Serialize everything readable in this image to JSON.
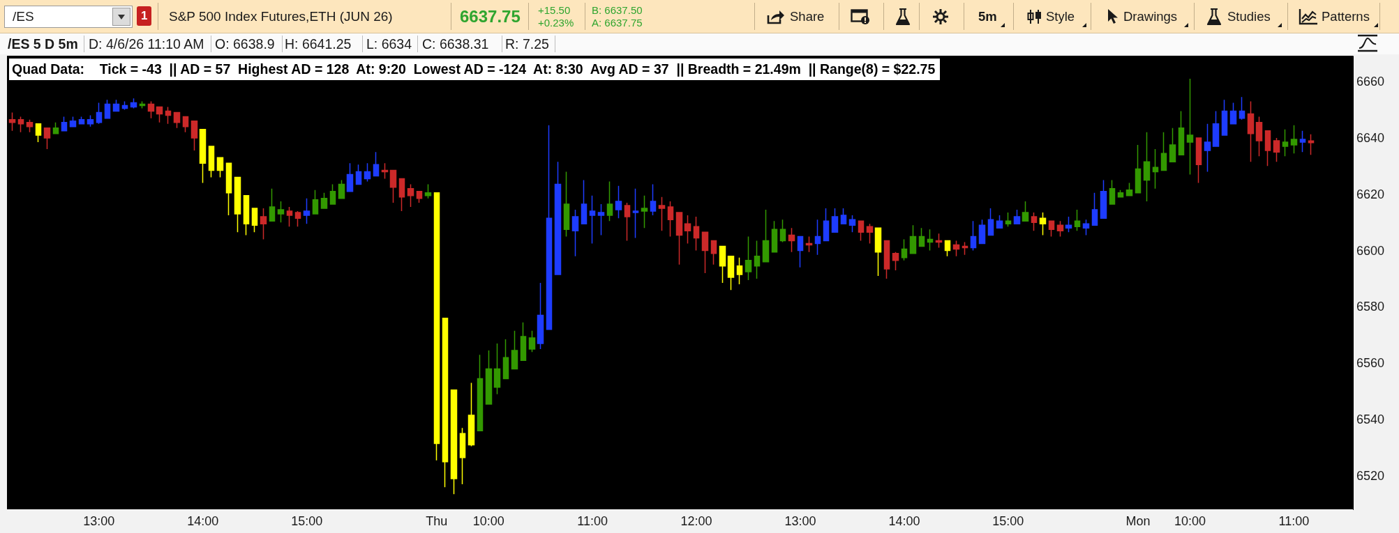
{
  "chart_data": {
    "type": "candlestick",
    "title": "S&P 500 Index Futures,ETH (JUN 26)",
    "annotations": [
      "/ES",
      "1",
      "6637.75",
      "+15.50",
      "+0.23%",
      "B: 6637.50",
      "A: 6637.75",
      "Share",
      "5m",
      "Style",
      "Drawings",
      "Studies",
      "Patterns",
      "/ES 5 D 5m",
      "D: 4/6/26 11:10 AM",
      "O: 6638.9",
      "H: 6641.25",
      "L: 6634",
      "C: 6638.31",
      "R: 7.25",
      "Quad Data:    Tick = -43  || AD = 57  Highest AD = 128  At: 9:20  Lowest AD = -124  At: 8:30  Avg AD = 37  || Breadth = 21.49m  || Range(8) = $22.75"
    ],
    "categories": [
      null,
      null,
      null,
      null,
      null,
      null,
      null,
      null,
      null,
      null,
      "13:00",
      null,
      null,
      null,
      null,
      null,
      null,
      null,
      null,
      null,
      null,
      null,
      "14:00",
      null,
      null,
      null,
      null,
      null,
      null,
      null,
      null,
      null,
      null,
      null,
      "15:00",
      null,
      null,
      null,
      null,
      null,
      null,
      null,
      null,
      null,
      null,
      null,
      null,
      null,
      null,
      "Thu",
      null,
      null,
      null,
      null,
      null,
      "10:00",
      null,
      null,
      null,
      null,
      null,
      null,
      null,
      null,
      null,
      null,
      null,
      "11:00",
      null,
      null,
      null,
      null,
      null,
      null,
      null,
      null,
      null,
      null,
      null,
      "12:00",
      null,
      null,
      null,
      null,
      null,
      null,
      null,
      null,
      null,
      null,
      null,
      "13:00",
      null,
      null,
      null,
      null,
      null,
      null,
      null,
      null,
      null,
      null,
      null,
      "14:00",
      null,
      null,
      null,
      null,
      null,
      null,
      null,
      null,
      null,
      null,
      null,
      "15:00",
      null,
      null,
      null,
      null,
      null,
      null,
      null,
      null,
      null,
      null,
      null,
      null,
      null,
      null,
      "Mon",
      null,
      null,
      null,
      null,
      null,
      "10:00",
      null,
      null,
      null,
      null,
      null,
      null,
      null,
      null,
      null,
      null,
      null,
      "11:00",
      null,
      null
    ],
    "ohlc": [
      [
        6646.5,
        6649,
        6642.5,
        6645.5
      ],
      [
        6646.5,
        6647.5,
        6642,
        6645
      ],
      [
        6645.5,
        6646.5,
        6642,
        6644
      ],
      [
        6645,
        6645,
        6638.5,
        6641
      ],
      [
        6643.5,
        6643.5,
        6636,
        6640
      ],
      [
        6641.5,
        6645.5,
        6641.5,
        6643.5
      ],
      [
        6642.5,
        6647.5,
        6642.5,
        6645.5
      ],
      [
        6644,
        6647.5,
        6644,
        6646
      ],
      [
        6645,
        6647.5,
        6645,
        6646.5
      ],
      [
        6645,
        6648,
        6644,
        6646.5
      ],
      [
        6645.5,
        6652.5,
        6645,
        6649
      ],
      [
        6647,
        6653.5,
        6647,
        6652
      ],
      [
        6649.5,
        6653.5,
        6649.5,
        6652
      ],
      [
        6650.5,
        6653,
        6650,
        6651.5
      ],
      [
        6651,
        6654,
        6650.5,
        6652.5
      ],
      [
        6651.5,
        6653,
        6650.5,
        6652
      ],
      [
        6652,
        6653,
        6647,
        6649.5
      ],
      [
        6651,
        6651,
        6645.5,
        6648.5
      ],
      [
        6649.5,
        6651,
        6645,
        6648
      ],
      [
        6649,
        6649,
        6643.5,
        6645.5
      ],
      [
        6647.5,
        6647.5,
        6642,
        6644
      ],
      [
        6646,
        6646,
        6635.5,
        6640
      ],
      [
        6643,
        6643,
        6624,
        6631
      ],
      [
        6637,
        6637,
        6626,
        6628.5
      ],
      [
        6633,
        6633,
        6626,
        6628.5
      ],
      [
        6631,
        6631,
        6612.5,
        6620.5
      ],
      [
        6626,
        6626,
        6606.5,
        6613
      ],
      [
        6619.5,
        6619.5,
        6605.5,
        6609.5
      ],
      [
        6615,
        6615,
        6606.5,
        6609
      ],
      [
        6612,
        6615,
        6604,
        6609.5
      ],
      [
        6610.5,
        6622,
        6610.5,
        6615.5
      ],
      [
        6613,
        6617.5,
        6610,
        6614.5
      ],
      [
        6614,
        6615.5,
        6608.5,
        6612.5
      ],
      [
        6613.5,
        6614,
        6608.5,
        6611.5
      ],
      [
        6612.5,
        6618.5,
        6609.5,
        6614
      ],
      [
        6613,
        6621.5,
        6613,
        6618
      ],
      [
        6615,
        6620.5,
        6615,
        6618.5
      ],
      [
        6616.5,
        6623.5,
        6616.5,
        6621
      ],
      [
        6618.5,
        6625,
        6618.5,
        6623.5
      ],
      [
        6621,
        6631,
        6621,
        6627
      ],
      [
        6623.5,
        6630.5,
        6623.5,
        6628
      ],
      [
        6625.5,
        6631,
        6624.5,
        6628
      ],
      [
        6626.5,
        6635,
        6626.5,
        6630.5
      ],
      [
        6628.5,
        6631,
        6625.5,
        6628
      ],
      [
        6628.5,
        6628.5,
        6617,
        6622.5
      ],
      [
        6625.5,
        6625.5,
        6614,
        6619
      ],
      [
        6622,
        6623.5,
        6615.5,
        6619.5
      ],
      [
        6621,
        6621,
        6617,
        6618.5
      ],
      [
        6619.5,
        6623.5,
        6618.5,
        6620.5
      ],
      [
        6620.5,
        6620.5,
        6525.5,
        6531.5
      ],
      [
        6576,
        6576,
        6516,
        6525
      ],
      [
        6550.5,
        6550.5,
        6513.5,
        6519
      ],
      [
        6535,
        6537,
        6517,
        6526.5
      ],
      [
        6531,
        6553,
        6530.5,
        6541.5
      ],
      [
        6536,
        6563,
        6536,
        6554.5
      ],
      [
        6545.5,
        6564.5,
        6545.5,
        6558
      ],
      [
        6551.5,
        6567,
        6549,
        6558
      ],
      [
        6554.5,
        6568.5,
        6554.5,
        6562
      ],
      [
        6558,
        6571.5,
        6558,
        6564.5
      ],
      [
        6561,
        6574.5,
        6561,
        6569.5
      ],
      [
        6565,
        6571.5,
        6564,
        6569
      ],
      [
        6567,
        6588.5,
        6565,
        6577
      ],
      [
        6572,
        6644.5,
        6572,
        6611.5
      ],
      [
        6591.5,
        6631.5,
        6591.5,
        6623.5
      ],
      [
        6607.5,
        6628,
        6605,
        6616.5
      ],
      [
        6612,
        6614.5,
        6598,
        6607
      ],
      [
        6609.5,
        6625,
        6609.5,
        6616.5
      ],
      [
        6612.5,
        6619.5,
        6602.5,
        6614
      ],
      [
        6613.5,
        6616.5,
        6605.5,
        6612.5
      ],
      [
        6612.5,
        6624.5,
        6610.5,
        6616.5
      ],
      [
        6614.5,
        6623,
        6611.5,
        6617.5
      ],
      [
        6616,
        6617,
        6603.5,
        6612
      ],
      [
        6614,
        6622,
        6604.5,
        6613.5
      ],
      [
        6614,
        6619.5,
        6608,
        6615
      ],
      [
        6614,
        6623.5,
        6612.5,
        6617.5
      ],
      [
        6616,
        6619,
        6607,
        6615
      ],
      [
        6615.5,
        6617.5,
        6605,
        6611
      ],
      [
        6613.5,
        6613.5,
        6595,
        6605.5
      ],
      [
        6609.5,
        6612.5,
        6602.5,
        6607
      ],
      [
        6608.5,
        6612,
        6600,
        6604.5
      ],
      [
        6606.5,
        6606.5,
        6592,
        6600
      ],
      [
        6603.5,
        6603.5,
        6595,
        6599
      ],
      [
        6601.5,
        6601.5,
        6588.5,
        6594.5
      ],
      [
        6598,
        6598,
        6586,
        6590.5
      ],
      [
        6594.5,
        6597.5,
        6588,
        6591.5
      ],
      [
        6592.5,
        6605,
        6589.5,
        6596.5
      ],
      [
        6594.5,
        6603.5,
        6590,
        6598
      ],
      [
        6596,
        6614.5,
        6596,
        6603.5
      ],
      [
        6599.5,
        6610.5,
        6599.5,
        6607.5
      ],
      [
        6603.5,
        6611,
        6603,
        6607.5
      ],
      [
        6605.5,
        6608,
        6599.5,
        6603.5
      ],
      [
        6605,
        6605,
        6594,
        6600
      ],
      [
        6602.5,
        6605,
        6599.5,
        6602
      ],
      [
        6602.5,
        6611,
        6598.5,
        6605
      ],
      [
        6603.5,
        6615,
        6603.5,
        6610.5
      ],
      [
        6606.5,
        6615,
        6606.5,
        6612
      ],
      [
        6609.5,
        6615,
        6609.5,
        6612.5
      ],
      [
        6611,
        6612.5,
        6606.5,
        6609
      ],
      [
        6610.5,
        6610.5,
        6603.5,
        6606.5
      ],
      [
        6608.5,
        6609.5,
        6602.5,
        6606.5
      ],
      [
        6608,
        6608,
        6591,
        6599.5
      ],
      [
        6603.5,
        6603.5,
        6590,
        6593.5
      ],
      [
        6599,
        6599.5,
        6593,
        6596.5
      ],
      [
        6597.5,
        6604,
        6596.5,
        6600.5
      ],
      [
        6599,
        6609,
        6599,
        6605
      ],
      [
        6601.5,
        6608,
        6601.5,
        6605
      ],
      [
        6603,
        6607.5,
        6600,
        6604
      ],
      [
        6603.5,
        6606,
        6601,
        6603
      ],
      [
        6603.5,
        6603.5,
        6598,
        6600
      ],
      [
        6602,
        6603.5,
        6598,
        6600.5
      ],
      [
        6601.5,
        6603,
        6598.5,
        6601
      ],
      [
        6601,
        6610.5,
        6600,
        6605
      ],
      [
        6602.5,
        6611,
        6602.5,
        6609
      ],
      [
        6605.5,
        6615,
        6605.5,
        6611
      ],
      [
        6608,
        6612.5,
        6608,
        6610.5
      ],
      [
        6609.5,
        6613.5,
        6608.5,
        6610.5
      ],
      [
        6609.5,
        6614.5,
        6609.5,
        6612
      ],
      [
        6610.5,
        6617.5,
        6610.5,
        6613.5
      ],
      [
        6612,
        6613.5,
        6607,
        6610
      ],
      [
        6611.5,
        6613.5,
        6605.5,
        6609.5
      ],
      [
        6610.5,
        6610.5,
        6605,
        6607.5
      ],
      [
        6609,
        6610.5,
        6605,
        6607
      ],
      [
        6608,
        6612,
        6606.5,
        6609
      ],
      [
        6608.5,
        6614.5,
        6607,
        6610.5
      ],
      [
        6609.5,
        6611,
        6605.5,
        6608
      ],
      [
        6609,
        6620.5,
        6609,
        6614.5
      ],
      [
        6611.5,
        6625,
        6611.5,
        6621
      ],
      [
        6616.5,
        6625,
        6616.5,
        6622
      ],
      [
        6619,
        6621.5,
        6619,
        6620.5
      ],
      [
        6619.5,
        6624,
        6619.5,
        6621.5
      ],
      [
        6620.5,
        6637.5,
        6620.5,
        6629
      ],
      [
        6625,
        6642,
        6617.5,
        6631.5
      ],
      [
        6628,
        6636,
        6622,
        6629.5
      ],
      [
        6628.5,
        6642,
        6628.5,
        6634.5
      ],
      [
        6631.5,
        6643.5,
        6631.5,
        6637.5
      ],
      [
        6634,
        6649.5,
        6634,
        6643.5
      ],
      [
        6638.5,
        6661,
        6627,
        6641
      ],
      [
        6640,
        6640,
        6624,
        6630.5
      ],
      [
        6635.5,
        6645,
        6628,
        6638.5
      ],
      [
        6637,
        6649.5,
        6637,
        6645
      ],
      [
        6641,
        6653.5,
        6641,
        6649.5
      ],
      [
        6645,
        6652.5,
        6645,
        6649.5
      ],
      [
        6647,
        6654.5,
        6646.5,
        6649.5
      ],
      [
        6648.5,
        6653,
        6631.5,
        6641.5
      ],
      [
        6645.5,
        6647.5,
        6633.5,
        6639
      ],
      [
        6642.5,
        6642.5,
        6630,
        6635.5
      ],
      [
        6639,
        6640,
        6631.5,
        6635
      ],
      [
        6637,
        6643,
        6633.5,
        6638.5
      ],
      [
        6637.5,
        6644.5,
        6634.5,
        6639.5
      ],
      [
        6638.5,
        6642.5,
        6635,
        6639.5
      ],
      [
        6638.9,
        6641.25,
        6634,
        6638.31
      ]
    ],
    "colors": [
      "#cc2929",
      "#cc2929",
      "#cc2929",
      "#ffff00",
      "#cc2929",
      "#339900",
      "#1e3cff",
      "#1e3cff",
      "#1e3cff",
      "#1e3cff",
      "#1e3cff",
      "#1e3cff",
      "#1e3cff",
      "#1e3cff",
      "#1e3cff",
      "#339900",
      "#cc2929",
      "#cc2929",
      "#cc2929",
      "#cc2929",
      "#cc2929",
      "#cc2929",
      "#ffff00",
      "#ffff00",
      "#ffff00",
      "#ffff00",
      "#ffff00",
      "#ffff00",
      "#ffff00",
      "#cc2929",
      "#339900",
      "#339900",
      "#cc2929",
      "#cc2929",
      "#1e3cff",
      "#339900",
      "#339900",
      "#339900",
      "#339900",
      "#1e3cff",
      "#1e3cff",
      "#1e3cff",
      "#1e3cff",
      "#cc2929",
      "#cc2929",
      "#cc2929",
      "#cc2929",
      "#cc2929",
      "#339900",
      "#ffff00",
      "#ffff00",
      "#ffff00",
      "#ffff00",
      "#ffff00",
      "#339900",
      "#339900",
      "#339900",
      "#339900",
      "#339900",
      "#339900",
      "#339900",
      "#1e3cff",
      "#1e3cff",
      "#1e3cff",
      "#339900",
      "#1e3cff",
      "#1e3cff",
      "#1e3cff",
      "#1e3cff",
      "#339900",
      "#1e3cff",
      "#cc2929",
      "#1e3cff",
      "#339900",
      "#1e3cff",
      "#cc2929",
      "#cc2929",
      "#cc2929",
      "#cc2929",
      "#cc2929",
      "#cc2929",
      "#cc2929",
      "#ffff00",
      "#ffff00",
      "#ffff00",
      "#339900",
      "#339900",
      "#339900",
      "#339900",
      "#339900",
      "#cc2929",
      "#1e3cff",
      "#cc2929",
      "#1e3cff",
      "#1e3cff",
      "#1e3cff",
      "#1e3cff",
      "#1e3cff",
      "#cc2929",
      "#cc2929",
      "#ffff00",
      "#cc2929",
      "#cc2929",
      "#339900",
      "#339900",
      "#339900",
      "#339900",
      "#cc2929",
      "#ffff00",
      "#cc2929",
      "#cc2929",
      "#1e3cff",
      "#1e3cff",
      "#1e3cff",
      "#1e3cff",
      "#339900",
      "#1e3cff",
      "#339900",
      "#cc2929",
      "#ffff00",
      "#cc2929",
      "#cc2929",
      "#1e3cff",
      "#339900",
      "#1e3cff",
      "#1e3cff",
      "#1e3cff",
      "#339900",
      "#339900",
      "#339900",
      "#339900",
      "#339900",
      "#339900",
      "#339900",
      "#339900",
      "#339900",
      "#339900",
      "#cc2929",
      "#1e3cff",
      "#1e3cff",
      "#1e3cff",
      "#1e3cff",
      "#1e3cff",
      "#cc2929",
      "#cc2929",
      "#cc2929",
      "#cc2929",
      "#339900",
      "#339900",
      "#1e3cff",
      "#cc2929"
    ],
    "ylim": [
      6508,
      6669
    ],
    "yticks": [
      6520,
      6540,
      6560,
      6580,
      6600,
      6620,
      6640,
      6660
    ]
  }
}
